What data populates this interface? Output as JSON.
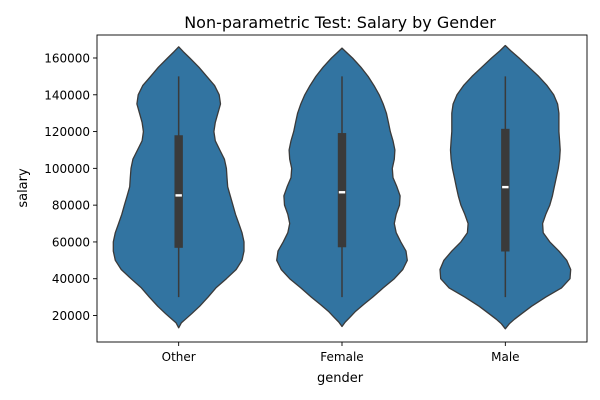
{
  "chart_data": {
    "type": "violin",
    "title": "Non-parametric Test: Salary by Gender",
    "xlabel": "gender",
    "ylabel": "salary",
    "categories": [
      "Other",
      "Female",
      "Male"
    ],
    "ylim": [
      5600,
      172500
    ],
    "yticks": [
      20000,
      40000,
      60000,
      80000,
      100000,
      120000,
      140000,
      160000
    ],
    "color": "#3274a1",
    "edge_color": "#3a3a3a",
    "violins": [
      {
        "category": "Other",
        "min": 30000,
        "max": 150000,
        "q1": 56800,
        "median": 85300,
        "q3": 118000,
        "extent": [
          13300,
          166100
        ],
        "density": [
          [
            13300,
            0.0
          ],
          [
            16000,
            0.04
          ],
          [
            18500,
            0.12
          ],
          [
            21000,
            0.2
          ],
          [
            25000,
            0.32
          ],
          [
            30000,
            0.45
          ],
          [
            35000,
            0.57
          ],
          [
            40000,
            0.73
          ],
          [
            45000,
            0.88
          ],
          [
            50000,
            0.97
          ],
          [
            55000,
            1.0
          ],
          [
            60000,
            1.0
          ],
          [
            65000,
            0.97
          ],
          [
            70000,
            0.92
          ],
          [
            75000,
            0.87
          ],
          [
            80000,
            0.83
          ],
          [
            85000,
            0.79
          ],
          [
            90000,
            0.75
          ],
          [
            95000,
            0.74
          ],
          [
            100000,
            0.73
          ],
          [
            105000,
            0.7
          ],
          [
            110000,
            0.63
          ],
          [
            115000,
            0.56
          ],
          [
            120000,
            0.54
          ],
          [
            125000,
            0.56
          ],
          [
            130000,
            0.6
          ],
          [
            135000,
            0.64
          ],
          [
            140000,
            0.62
          ],
          [
            145000,
            0.55
          ],
          [
            150000,
            0.43
          ],
          [
            155000,
            0.31
          ],
          [
            160000,
            0.17
          ],
          [
            163500,
            0.07
          ],
          [
            166100,
            0.0
          ]
        ]
      },
      {
        "category": "Female",
        "min": 30000,
        "max": 150000,
        "q1": 57100,
        "median": 87000,
        "q3": 119200,
        "extent": [
          14000,
          165400
        ],
        "density": [
          [
            14000,
            0.0
          ],
          [
            16500,
            0.05
          ],
          [
            19000,
            0.12
          ],
          [
            22000,
            0.2
          ],
          [
            26000,
            0.33
          ],
          [
            30000,
            0.47
          ],
          [
            35000,
            0.63
          ],
          [
            40000,
            0.8
          ],
          [
            45000,
            0.93
          ],
          [
            50000,
            1.0
          ],
          [
            55000,
            0.98
          ],
          [
            60000,
            0.9
          ],
          [
            65000,
            0.83
          ],
          [
            70000,
            0.8
          ],
          [
            75000,
            0.83
          ],
          [
            80000,
            0.88
          ],
          [
            85000,
            0.89
          ],
          [
            90000,
            0.84
          ],
          [
            95000,
            0.78
          ],
          [
            100000,
            0.77
          ],
          [
            105000,
            0.8
          ],
          [
            110000,
            0.81
          ],
          [
            115000,
            0.78
          ],
          [
            120000,
            0.74
          ],
          [
            125000,
            0.71
          ],
          [
            130000,
            0.68
          ],
          [
            135000,
            0.63
          ],
          [
            140000,
            0.57
          ],
          [
            145000,
            0.49
          ],
          [
            150000,
            0.4
          ],
          [
            155000,
            0.29
          ],
          [
            160000,
            0.16
          ],
          [
            163000,
            0.07
          ],
          [
            165400,
            0.0
          ]
        ]
      },
      {
        "category": "Male",
        "min": 30000,
        "max": 150000,
        "q1": 54800,
        "median": 89800,
        "q3": 121500,
        "extent": [
          12800,
          166800
        ],
        "density": [
          [
            12800,
            0.0
          ],
          [
            15500,
            0.06
          ],
          [
            18000,
            0.14
          ],
          [
            21000,
            0.25
          ],
          [
            25000,
            0.4
          ],
          [
            30000,
            0.62
          ],
          [
            35000,
            0.86
          ],
          [
            40000,
            0.99
          ],
          [
            45000,
            1.0
          ],
          [
            50000,
            0.94
          ],
          [
            55000,
            0.82
          ],
          [
            60000,
            0.68
          ],
          [
            65000,
            0.58
          ],
          [
            70000,
            0.57
          ],
          [
            75000,
            0.62
          ],
          [
            80000,
            0.68
          ],
          [
            85000,
            0.72
          ],
          [
            90000,
            0.75
          ],
          [
            95000,
            0.78
          ],
          [
            100000,
            0.81
          ],
          [
            105000,
            0.83
          ],
          [
            110000,
            0.84
          ],
          [
            115000,
            0.83
          ],
          [
            120000,
            0.82
          ],
          [
            125000,
            0.82
          ],
          [
            130000,
            0.82
          ],
          [
            135000,
            0.8
          ],
          [
            140000,
            0.74
          ],
          [
            145000,
            0.64
          ],
          [
            150000,
            0.51
          ],
          [
            155000,
            0.36
          ],
          [
            160000,
            0.21
          ],
          [
            164000,
            0.08
          ],
          [
            166800,
            0.0
          ]
        ]
      }
    ]
  }
}
